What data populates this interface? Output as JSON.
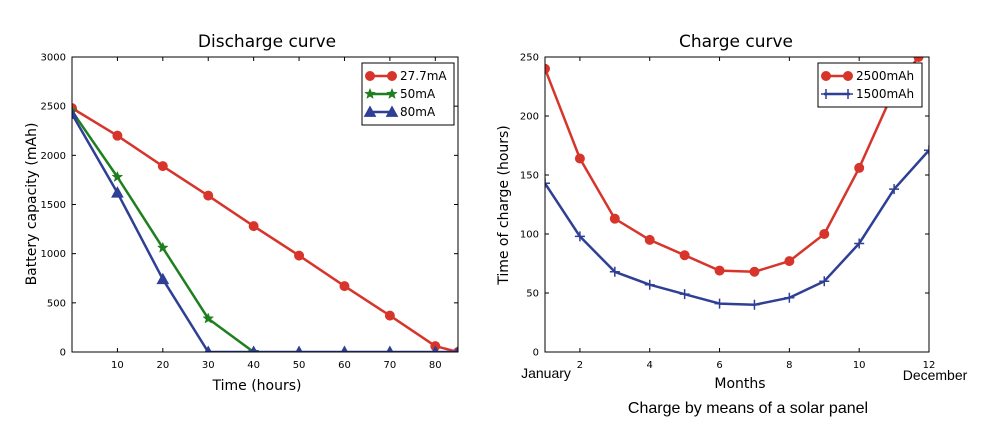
{
  "chart_data": [
    {
      "type": "line",
      "title": "Discharge curve",
      "xlabel": "Time (hours)",
      "ylabel": "Battery capacity (mAh)",
      "xlim": [
        0,
        85
      ],
      "ylim": [
        0,
        3000
      ],
      "xticks": [
        10,
        20,
        30,
        40,
        50,
        60,
        70,
        80
      ],
      "yticks": [
        0,
        500,
        1000,
        1500,
        2000,
        2500,
        3000
      ],
      "grid": false,
      "legend": "top-right",
      "series": [
        {
          "name": "27.7mA",
          "color": "#d7352b",
          "marker": "circle",
          "x": [
            0,
            10,
            20,
            30,
            40,
            50,
            60,
            70,
            80,
            85
          ],
          "y": [
            2480,
            2200,
            1890,
            1590,
            1280,
            980,
            670,
            370,
            60,
            0
          ]
        },
        {
          "name": "50mA",
          "color": "#1f7f1f",
          "marker": "star",
          "x": [
            0,
            10,
            20,
            30,
            40
          ],
          "y": [
            2450,
            1780,
            1060,
            340,
            0
          ]
        },
        {
          "name": "80mA",
          "color": "#2e3f95",
          "marker": "triangle",
          "x": [
            0,
            10,
            20,
            30,
            40,
            50,
            60,
            70,
            80,
            85
          ],
          "y": [
            2420,
            1620,
            740,
            0,
            0,
            0,
            0,
            0,
            0,
            0
          ]
        }
      ]
    },
    {
      "type": "line",
      "title": "Charge curve",
      "xlabel": "Months",
      "ylabel": "Time of charge (hours)",
      "xlim": [
        1,
        12
      ],
      "ylim": [
        0,
        250
      ],
      "xticks": [
        2,
        4,
        6,
        8,
        10,
        12
      ],
      "yticks": [
        0,
        50,
        100,
        150,
        200,
        250
      ],
      "grid": false,
      "legend": "top-right",
      "start_label": "January",
      "end_label": "December",
      "caption": "Charge by means of a solar panel",
      "series": [
        {
          "name": "2500mAh",
          "color": "#d7352b",
          "marker": "circle",
          "x": [
            1,
            2,
            3,
            4,
            5,
            6,
            7,
            8,
            9,
            10,
            11,
            11.7
          ],
          "y": [
            240,
            164,
            113,
            95,
            82,
            69,
            68,
            77,
            100,
            156,
            222,
            250
          ]
        },
        {
          "name": "1500mAh",
          "color": "#2e3f95",
          "marker": "plus",
          "x": [
            1,
            2,
            3,
            4,
            5,
            6,
            7,
            8,
            9,
            10,
            11,
            12
          ],
          "y": [
            143,
            98,
            68,
            57,
            49,
            41,
            40,
            46,
            60,
            92,
            138,
            171
          ]
        }
      ]
    }
  ]
}
